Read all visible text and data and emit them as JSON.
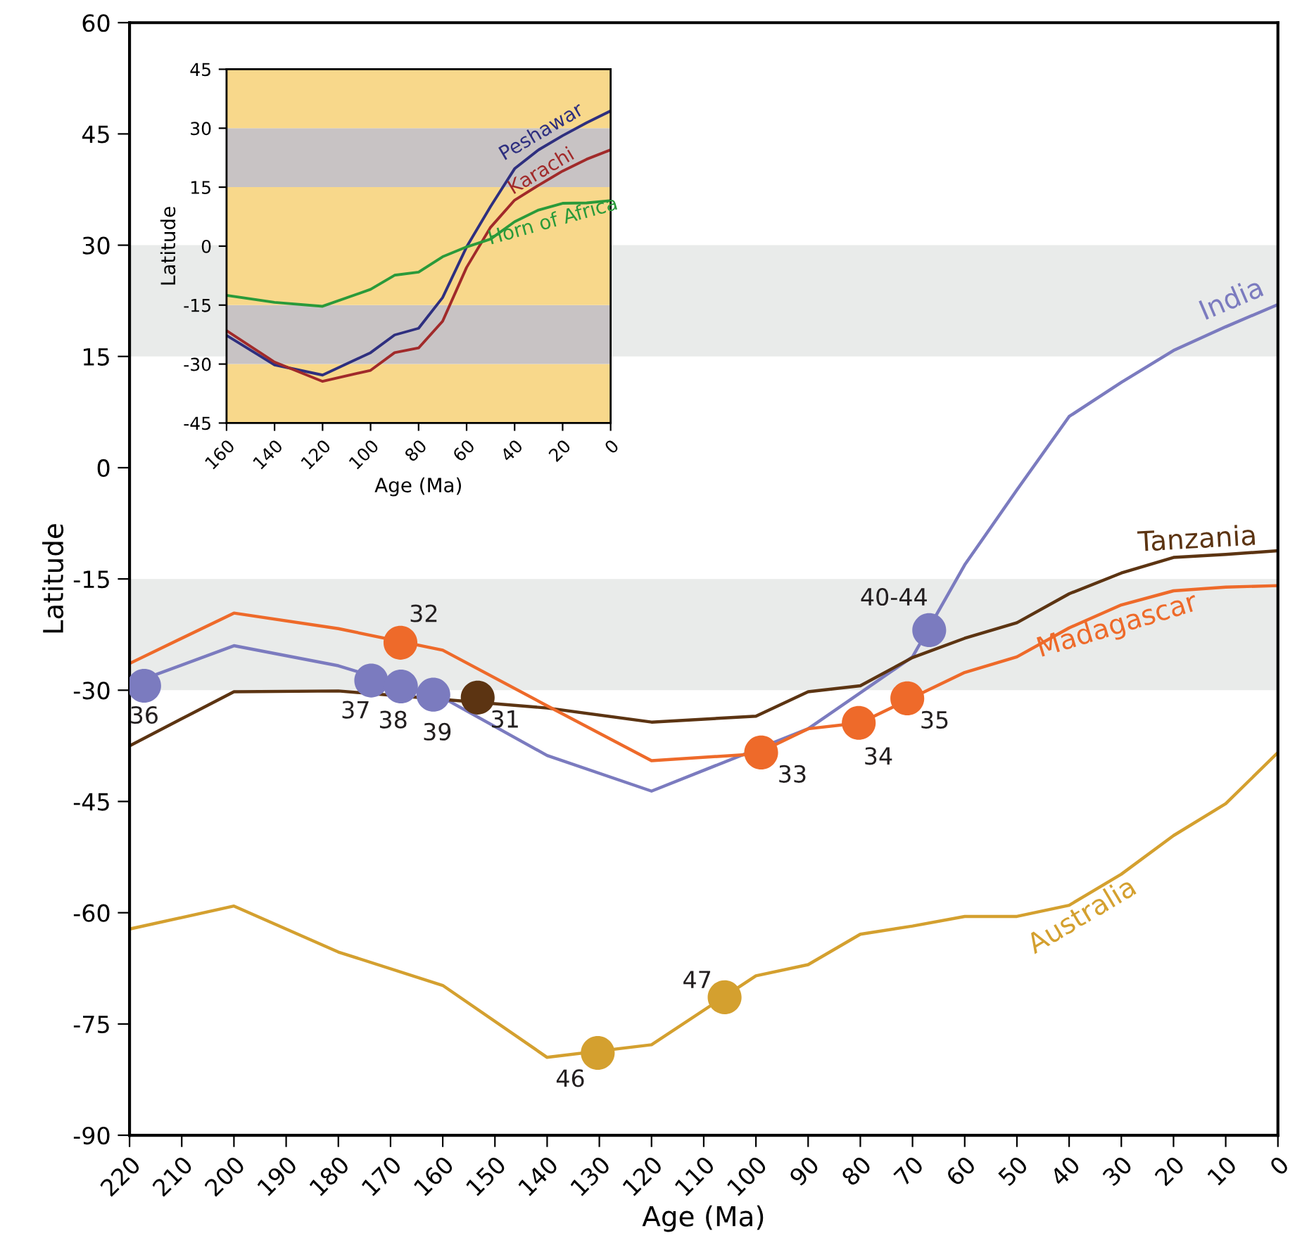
{
  "chart_data": [
    {
      "type": "line",
      "xlabel": "Age (Ma)",
      "ylabel": "Latitude",
      "xlim": [
        220,
        0
      ],
      "ylim": [
        -90,
        60
      ],
      "xticks": [
        220,
        210,
        200,
        190,
        180,
        170,
        160,
        150,
        140,
        130,
        120,
        110,
        100,
        90,
        80,
        70,
        60,
        50,
        40,
        30,
        20,
        10,
        0
      ],
      "yticks": [
        -90,
        -75,
        -60,
        -45,
        -30,
        -15,
        0,
        15,
        30,
        45,
        60
      ],
      "grid": false,
      "bands": [
        {
          "axis": "y",
          "from": -30,
          "to": -15,
          "color": "#e9ebea"
        },
        {
          "axis": "y",
          "from": 15,
          "to": 30,
          "color": "#e9ebea"
        }
      ],
      "series": [
        {
          "name": "India",
          "color": "#7b7bbf",
          "x": [
            220,
            200,
            180,
            160,
            140,
            120,
            90,
            70,
            60,
            50,
            40,
            30,
            20,
            10,
            0
          ],
          "values": [
            -29.2,
            -24,
            -26.7,
            -31,
            -38.8,
            -43.6,
            -35.2,
            -25.5,
            -13.1,
            -3,
            6.9,
            11.5,
            15.8,
            19,
            22
          ]
        },
        {
          "name": "Tanzania",
          "color": "#5c3412",
          "x": [
            220,
            200,
            180,
            140,
            120,
            100,
            90,
            80,
            70,
            60,
            50,
            40,
            30,
            20,
            10,
            0
          ],
          "values": [
            -37.5,
            -30.2,
            -30.1,
            -32.4,
            -34.3,
            -33.5,
            -30.2,
            -29.4,
            -25.6,
            -23,
            -20.9,
            -17,
            -14.2,
            -12.1,
            -11.7,
            -11.2
          ]
        },
        {
          "name": "Madagascar",
          "color": "#ee6a2a",
          "x": [
            220,
            200,
            180,
            160,
            140,
            120,
            100,
            90,
            80,
            70,
            60,
            50,
            40,
            30,
            20,
            10,
            0
          ],
          "values": [
            -26.4,
            -19.6,
            -21.7,
            -24.6,
            -32.1,
            -39.5,
            -38.6,
            -35.2,
            -34.4,
            -31,
            -27.6,
            -25.5,
            -21.6,
            -18.5,
            -16.6,
            -16.1,
            -15.9
          ]
        },
        {
          "name": "Australia",
          "color": "#d4a02f",
          "x": [
            220,
            200,
            180,
            160,
            140,
            120,
            100,
            90,
            80,
            70,
            60,
            50,
            40,
            30,
            20,
            10,
            0
          ],
          "values": [
            -62.2,
            -59.1,
            -65.3,
            -69.8,
            -79.5,
            -77.8,
            -68.5,
            -67,
            -62.9,
            -61.8,
            -60.5,
            -60.5,
            -59,
            -54.8,
            -49.6,
            -45.3,
            -38.4
          ]
        },
        {
          "type": "scatter",
          "marker": "circle",
          "color": "#7b7bbf",
          "x": [
            217.2,
            173.7,
            168,
            161.8,
            66.8
          ],
          "values": [
            -29.4,
            -28.7,
            -29.5,
            -30.6,
            -21.9
          ]
        },
        {
          "type": "scatter",
          "marker": "circle",
          "color": "#5c3412",
          "x": [
            153.3
          ],
          "values": [
            -31
          ]
        },
        {
          "type": "scatter",
          "marker": "circle",
          "color": "#ee6a2a",
          "x": [
            168.1,
            99,
            80.3,
            71
          ],
          "values": [
            -23.6,
            -38.4,
            -34.4,
            -31.1
          ]
        },
        {
          "type": "scatter",
          "marker": "circle",
          "color": "#d4a02f",
          "x": [
            130.3,
            106
          ],
          "values": [
            -78.9,
            -71.4
          ]
        }
      ],
      "annotations": [
        {
          "text": "36",
          "x": 217.2,
          "y": -29.4
        },
        {
          "text": "37",
          "x": 173.7,
          "y": -28.7
        },
        {
          "text": "38",
          "x": 168,
          "y": -29.5
        },
        {
          "text": "39",
          "x": 161.8,
          "y": -30.6
        },
        {
          "text": "31",
          "x": 153.3,
          "y": -31
        },
        {
          "text": "32",
          "x": 168.1,
          "y": -23.6
        },
        {
          "text": "33",
          "x": 99,
          "y": -38.4
        },
        {
          "text": "34",
          "x": 80.3,
          "y": -34.4
        },
        {
          "text": "35",
          "x": 71,
          "y": -31.1
        },
        {
          "text": "40-44",
          "x": 66.8,
          "y": -21.9
        },
        {
          "text": "46",
          "x": 130.3,
          "y": -78.9
        },
        {
          "text": "47",
          "x": 106,
          "y": -71.4
        }
      ]
    },
    {
      "type": "line",
      "xlabel": "Age (Ma)",
      "ylabel": "Latitude",
      "xlim": [
        160,
        0
      ],
      "ylim": [
        -45,
        45
      ],
      "xticks": [
        160,
        140,
        120,
        100,
        80,
        60,
        40,
        20,
        0
      ],
      "yticks": [
        -45,
        -30,
        -15,
        0,
        15,
        30,
        45
      ],
      "grid": false,
      "bands": [
        {
          "axis": "y",
          "from": -45,
          "to": -30,
          "color": "#f8d88b"
        },
        {
          "axis": "y",
          "from": -30,
          "to": -15,
          "color": "#c8c3c4"
        },
        {
          "axis": "y",
          "from": -15,
          "to": 15,
          "color": "#f8d88b"
        },
        {
          "axis": "y",
          "from": 15,
          "to": 30,
          "color": "#c8c3c4"
        },
        {
          "axis": "y",
          "from": 30,
          "to": 45,
          "color": "#f8d88b"
        }
      ],
      "series": [
        {
          "name": "Peshawar",
          "color": "#2e2f7f",
          "x": [
            160,
            140,
            120,
            100,
            90,
            80,
            70,
            60,
            50,
            40,
            30,
            20,
            10,
            0
          ],
          "values": [
            -22.7,
            -30.2,
            -32.8,
            -27.1,
            -22.6,
            -20.9,
            -13.1,
            -0.2,
            10.1,
            19.7,
            24.5,
            28.1,
            31.4,
            34.4
          ]
        },
        {
          "name": "Karachi",
          "color": "#a12a2a",
          "x": [
            160,
            140,
            120,
            100,
            90,
            80,
            70,
            60,
            50,
            40,
            30,
            20,
            10,
            0
          ],
          "values": [
            -21.5,
            -29.5,
            -34.4,
            -31.6,
            -27.1,
            -25.9,
            -19.1,
            -5.4,
            4.8,
            11.7,
            15.5,
            19.1,
            22.1,
            24.5
          ]
        },
        {
          "name": "Horn of Africa",
          "color": "#2a9a3a",
          "x": [
            160,
            140,
            120,
            100,
            90,
            80,
            70,
            60,
            50,
            40,
            30,
            20,
            10,
            0
          ],
          "values": [
            -12.5,
            -14.3,
            -15.3,
            -11,
            -7.4,
            -6.6,
            -2.7,
            -0.2,
            1.8,
            6.2,
            9.2,
            10.9,
            11,
            11.6
          ]
        }
      ]
    }
  ]
}
